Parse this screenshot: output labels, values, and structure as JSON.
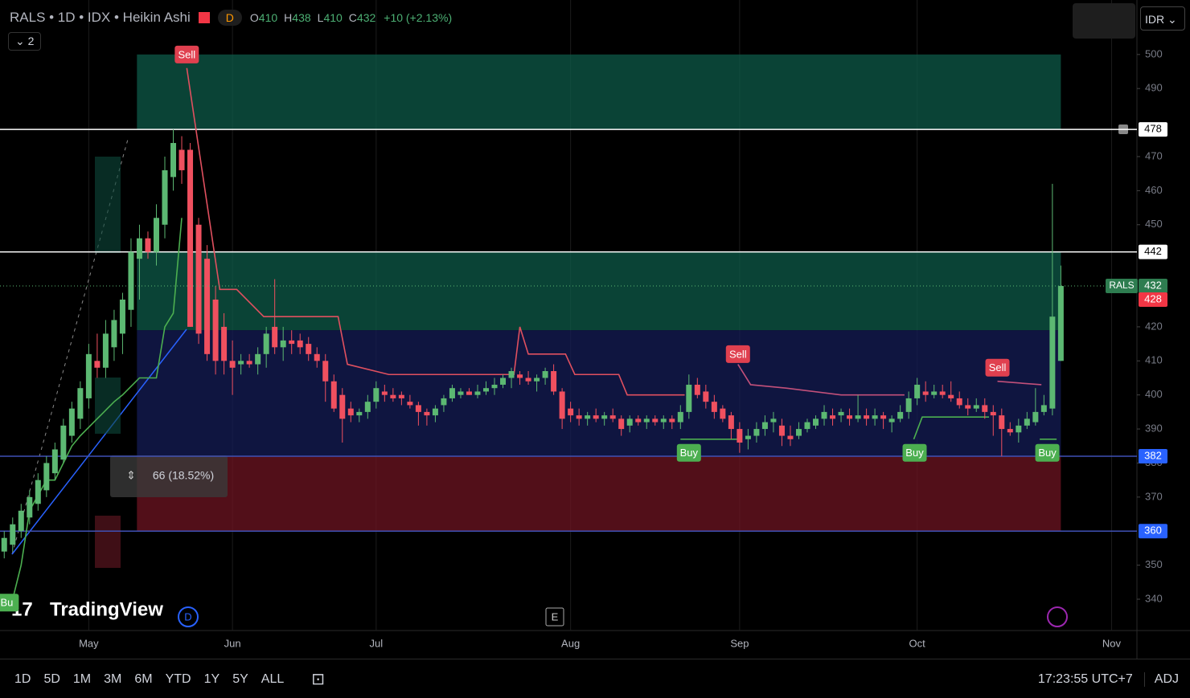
{
  "header": {
    "symbol": "RALS • 1D • IDX • Heikin Ashi",
    "badge": "D",
    "ohlc": [
      {
        "label": "O",
        "value": 410
      },
      {
        "label": "H",
        "value": 438
      },
      {
        "label": "L",
        "value": 410
      },
      {
        "label": "C",
        "value": 432
      }
    ],
    "change": "+10 (+2.13%)",
    "indicator_count": "2",
    "currency": "IDR"
  },
  "logo": "TradingView",
  "toolbar": {
    "ranges": [
      "1D",
      "5D",
      "1M",
      "3M",
      "6M",
      "YTD",
      "1Y",
      "5Y",
      "ALL"
    ],
    "clock": "17:23:55 UTC+7",
    "adj": "ADJ"
  },
  "chart_data": {
    "type": "candlestick",
    "up_color": "#5cb872",
    "down_color": "#f0505f",
    "xlim": [
      -0.5,
      134
    ],
    "ylim": [
      330.8,
      516
    ],
    "xticks": [
      {
        "value": 10,
        "label": "May"
      },
      {
        "value": 27,
        "label": "Jun"
      },
      {
        "value": 44,
        "label": "Jul"
      },
      {
        "value": 67,
        "label": "Aug"
      },
      {
        "value": 87,
        "label": "Sep"
      },
      {
        "value": 108,
        "label": "Oct"
      },
      {
        "value": 131,
        "label": "Nov"
      }
    ],
    "yticks": [
      340,
      350,
      370,
      380,
      390,
      400,
      410,
      420,
      450,
      460,
      470,
      490,
      500
    ],
    "candles": [
      [
        354,
        360,
        352,
        358
      ],
      [
        356,
        364,
        354,
        362
      ],
      [
        360,
        368,
        358,
        366
      ],
      [
        364,
        372,
        362,
        370
      ],
      [
        368,
        377,
        366,
        375
      ],
      [
        372,
        382,
        370,
        380
      ],
      [
        377,
        386,
        375,
        384
      ],
      [
        381,
        393,
        380,
        391
      ],
      [
        388,
        398,
        386,
        396
      ],
      [
        393,
        404,
        390,
        402
      ],
      [
        399,
        415,
        396,
        412
      ],
      [
        410,
        418,
        405,
        408
      ],
      [
        408,
        422,
        405,
        418
      ],
      [
        414,
        425,
        410,
        422
      ],
      [
        418,
        430,
        412,
        428
      ],
      [
        425,
        446,
        420,
        442
      ],
      [
        440,
        450,
        428,
        446
      ],
      [
        446,
        448,
        440,
        442
      ],
      [
        442,
        456,
        438,
        452
      ],
      [
        450,
        470,
        446,
        466
      ],
      [
        464,
        478,
        460,
        474
      ],
      [
        472,
        476,
        462,
        466
      ],
      [
        472,
        474,
        420,
        420
      ],
      [
        450,
        452,
        415,
        418
      ],
      [
        440,
        444,
        410,
        412
      ],
      [
        428,
        432,
        406,
        410
      ],
      [
        420,
        424,
        406,
        410
      ],
      [
        410,
        416,
        400,
        408
      ],
      [
        409,
        412,
        406,
        410
      ],
      [
        410,
        412,
        408,
        409
      ],
      [
        409,
        414,
        406,
        412
      ],
      [
        412,
        420,
        408,
        418
      ],
      [
        420,
        434,
        412,
        414
      ],
      [
        414,
        420,
        410,
        416
      ],
      [
        416,
        419,
        412,
        415
      ],
      [
        416,
        418,
        412,
        414
      ],
      [
        415,
        417,
        410,
        412
      ],
      [
        412,
        414,
        408,
        410
      ],
      [
        410,
        412,
        398,
        404
      ],
      [
        404,
        406,
        395,
        396
      ],
      [
        400,
        402,
        386,
        393
      ],
      [
        396,
        398,
        392,
        394
      ],
      [
        394,
        396,
        392,
        395
      ],
      [
        395,
        400,
        393,
        398
      ],
      [
        398,
        404,
        396,
        402
      ],
      [
        401,
        403,
        398,
        400
      ],
      [
        400,
        402,
        398,
        399
      ],
      [
        400,
        401,
        397,
        399
      ],
      [
        398,
        400,
        396,
        397
      ],
      [
        397,
        398,
        391,
        395
      ],
      [
        395,
        396,
        391,
        394
      ],
      [
        394,
        397,
        392,
        396
      ],
      [
        397,
        400,
        395,
        399
      ],
      [
        399,
        403,
        398,
        402
      ],
      [
        400,
        402,
        399,
        401
      ],
      [
        401,
        402,
        400,
        400
      ],
      [
        400,
        403,
        399,
        401
      ],
      [
        401,
        404,
        400,
        402
      ],
      [
        402,
        405,
        400,
        403
      ],
      [
        403,
        406,
        402,
        405
      ],
      [
        405,
        408,
        402,
        407
      ],
      [
        406,
        407,
        403,
        405
      ],
      [
        405,
        407,
        403,
        404
      ],
      [
        404,
        406,
        401,
        405
      ],
      [
        405,
        408,
        403,
        407
      ],
      [
        407,
        409,
        400,
        401
      ],
      [
        401,
        402,
        390,
        393
      ],
      [
        396,
        398,
        392,
        394
      ],
      [
        394,
        396,
        391,
        393
      ],
      [
        393,
        395,
        391,
        394
      ],
      [
        394,
        396,
        392,
        393
      ],
      [
        393,
        395,
        391,
        394
      ],
      [
        394,
        396,
        392,
        393
      ],
      [
        393,
        394,
        388,
        390
      ],
      [
        391,
        394,
        389,
        393
      ],
      [
        393,
        394,
        391,
        392
      ],
      [
        392,
        394,
        390,
        393
      ],
      [
        393,
        394,
        391,
        392
      ],
      [
        392,
        394,
        390,
        393
      ],
      [
        393,
        394,
        390,
        392
      ],
      [
        392,
        397,
        390,
        395
      ],
      [
        395,
        406,
        393,
        403
      ],
      [
        403,
        405,
        399,
        400
      ],
      [
        401,
        403,
        396,
        398
      ],
      [
        398,
        400,
        393,
        395
      ],
      [
        396,
        397,
        392,
        393
      ],
      [
        394,
        395,
        387,
        390
      ],
      [
        390,
        392,
        383,
        386
      ],
      [
        387,
        390,
        384,
        388
      ],
      [
        388,
        392,
        386,
        390
      ],
      [
        390,
        394,
        388,
        392
      ],
      [
        392,
        395,
        389,
        393
      ],
      [
        391,
        393,
        385,
        388
      ],
      [
        388,
        391,
        385,
        387
      ],
      [
        388,
        392,
        387,
        390
      ],
      [
        390,
        393,
        389,
        392
      ],
      [
        391,
        394,
        390,
        393
      ],
      [
        393,
        397,
        391,
        395
      ],
      [
        394,
        396,
        391,
        393
      ],
      [
        394,
        396,
        392,
        395
      ],
      [
        394,
        396,
        391,
        393
      ],
      [
        393,
        400,
        392,
        394
      ],
      [
        394,
        396,
        391,
        393
      ],
      [
        393,
        396,
        391,
        394
      ],
      [
        394,
        395,
        390,
        393
      ],
      [
        392,
        394,
        389,
        393
      ],
      [
        393,
        397,
        392,
        395
      ],
      [
        395,
        401,
        393,
        399
      ],
      [
        399,
        405,
        397,
        403
      ],
      [
        401,
        404,
        398,
        400
      ],
      [
        400,
        403,
        399,
        401
      ],
      [
        401,
        403,
        399,
        400
      ],
      [
        400,
        404,
        398,
        399
      ],
      [
        399,
        401,
        396,
        397
      ],
      [
        397,
        399,
        394,
        396
      ],
      [
        396,
        399,
        395,
        397
      ],
      [
        397,
        399,
        393,
        395
      ],
      [
        395,
        397,
        388,
        394
      ],
      [
        394,
        396,
        382,
        390
      ],
      [
        390,
        392,
        388,
        389
      ],
      [
        389,
        393,
        386,
        391
      ],
      [
        391,
        395,
        390,
        393
      ],
      [
        392,
        402,
        391,
        395
      ],
      [
        395,
        400,
        394,
        397
      ],
      [
        396,
        462,
        394,
        423
      ],
      [
        410,
        438,
        410,
        432
      ]
    ],
    "zones": [
      {
        "from": 478,
        "to": 500,
        "start": 15.7,
        "end": 125,
        "color": "#0e5a48"
      },
      {
        "from": 419,
        "to": 442,
        "start": 15.7,
        "end": 125,
        "color": "#0e5a48"
      },
      {
        "from": 382,
        "to": 419,
        "start": 15.7,
        "end": 125,
        "color": "#141c55"
      },
      {
        "from": 360,
        "to": 382,
        "start": 15.7,
        "end": 125,
        "color": "#6e1422"
      }
    ],
    "levels": [
      {
        "value": 478,
        "color": "#ffffff"
      },
      {
        "value": 442,
        "color": "#ffffff"
      },
      {
        "value": 382,
        "color": "#3f51b5"
      },
      {
        "value": 360,
        "color": "#3f51b5"
      }
    ],
    "trails": [
      {
        "color": "#4caf50",
        "x": [
          0,
          1,
          2,
          3,
          5,
          6,
          8,
          9,
          11,
          13,
          14,
          16,
          18,
          19,
          20,
          21
        ],
        "values": [
          340,
          340,
          350,
          366,
          375,
          375,
          385,
          388,
          393,
          398,
          400,
          405,
          405,
          420,
          424,
          452
        ]
      },
      {
        "color": "#e0505f",
        "x": [
          21.6,
          25.5,
          27.5,
          30.7,
          39.5,
          40.6,
          45.5,
          60.3,
          61,
          62,
          66.4,
          67.5,
          72.7,
          73.7,
          80.5
        ],
        "values": [
          496,
          431,
          431,
          423,
          423,
          409,
          406,
          406,
          420,
          412,
          412,
          406,
          406,
          400,
          400
        ]
      },
      {
        "color": "#c2507a",
        "x": [
          86.8,
          88.3,
          92.5,
          99,
          106.5
        ],
        "values": [
          409,
          403,
          402,
          400,
          400
        ]
      },
      {
        "color": "#c2507a",
        "x": [
          117.5,
          122.7
        ],
        "values": [
          404,
          403
        ]
      },
      {
        "color": "#4caf50",
        "x": [
          80,
          86.7
        ],
        "values": [
          387,
          387
        ]
      },
      {
        "color": "#4caf50",
        "x": [
          107.6,
          108.6,
          116.5
        ],
        "values": [
          387,
          393.5,
          393.5
        ]
      },
      {
        "color": "#4caf50",
        "x": [
          122.5,
          124.5
        ],
        "values": [
          387,
          387
        ]
      }
    ],
    "signals": [
      {
        "text": "Sell",
        "x": 21.6,
        "value": 500
      },
      {
        "text": "Sell",
        "x": 86.8,
        "value": 412
      },
      {
        "text": "Sell",
        "x": 117.5,
        "value": 408
      },
      {
        "text": "Buy",
        "x": 81,
        "value": 383
      },
      {
        "text": "Buy",
        "x": 107.7,
        "value": 383
      },
      {
        "text": "Buy",
        "x": 123.4,
        "value": 383
      },
      {
        "text": "Bu",
        "x": 0.3,
        "value": 339
      }
    ],
    "last_price": {
      "symbol": "RALS",
      "value": 432
    },
    "alt_price": 428,
    "measure": "66 (18.52%)"
  }
}
